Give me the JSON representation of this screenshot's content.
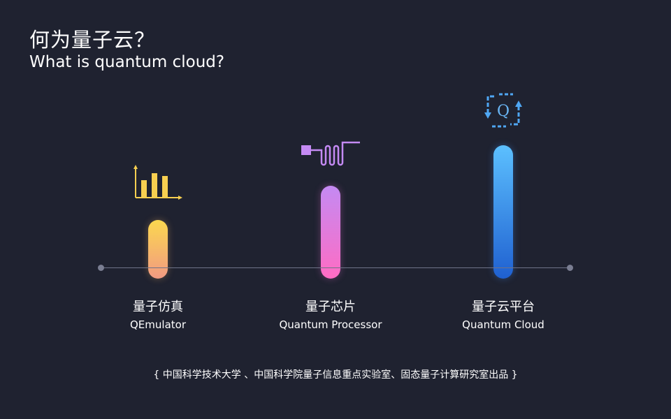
{
  "title": {
    "zh": "何为量子云？",
    "en": "What is quantum cloud?"
  },
  "items": [
    {
      "zh": "量子仿真",
      "en": "QEmulator",
      "icon": "bar-chart-icon",
      "gradient": [
        "#fbd84f",
        "#f29a82"
      ]
    },
    {
      "zh": "量子芯片",
      "en": "Quantum Processor",
      "icon": "quantum-chip-icon",
      "gradient": [
        "#c48af3",
        "#ff6cc3"
      ]
    },
    {
      "zh": "量子云平台",
      "en": "Quantum Cloud",
      "icon": "quantum-cloud-icon",
      "icon_text": "Q",
      "gradient": [
        "#5cc0ff",
        "#1f60d0"
      ]
    }
  ],
  "footer": "{ 中国科学技术大学 、中国科学院量子信息重点实验室、固态量子计算研究室出品 }",
  "colors": {
    "background": "#1f2230",
    "baseline": "#6f7388"
  }
}
